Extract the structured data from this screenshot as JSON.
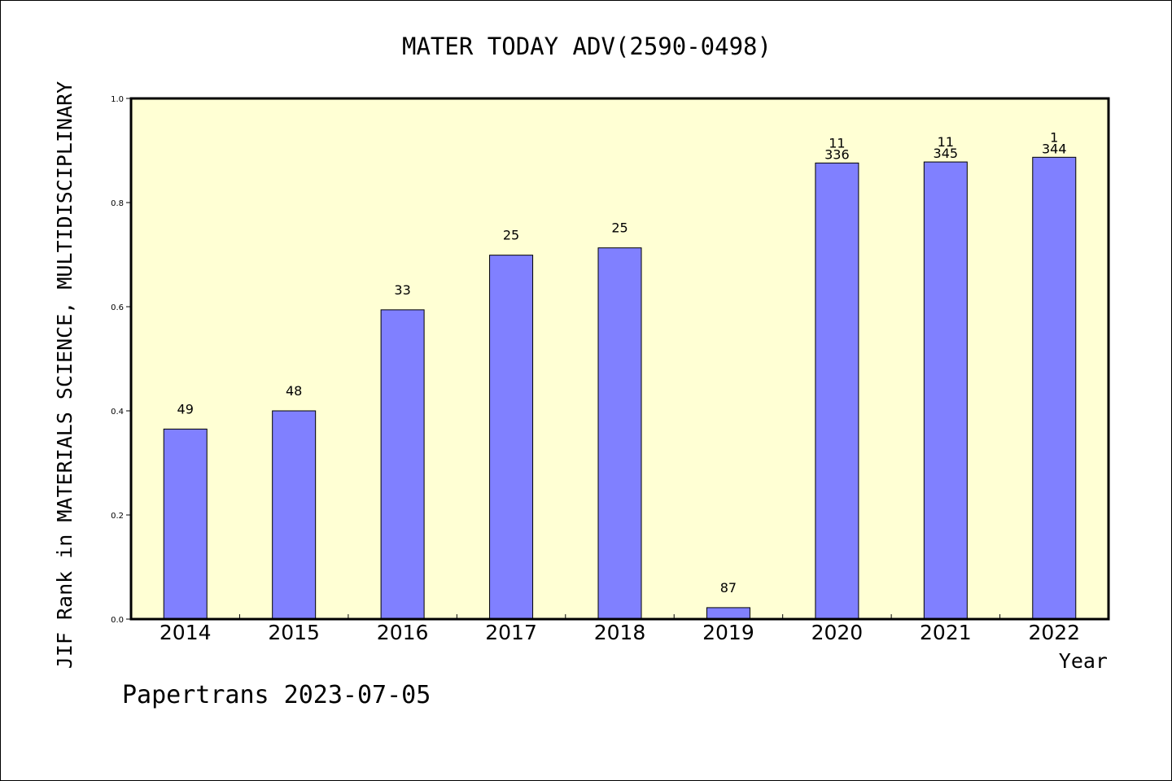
{
  "footer": "Papertrans 2023-07-05",
  "colors": {
    "plot_background": "#ffffd4",
    "bar_fill": "#8080ff",
    "bar_stroke": "#000000"
  },
  "chart_data": {
    "type": "bar",
    "title": "MATER TODAY ADV(2590-0498)",
    "xlabel": "Year",
    "ylabel": "JIF Rank in MATERIALS SCIENCE, MULTIDISCIPLINARY",
    "ylim": [
      0,
      1.0
    ],
    "yticks": [
      "0.0",
      "0.2",
      "0.4",
      "0.6",
      "0.8",
      "1.0"
    ],
    "grid": false,
    "categories": [
      "2014",
      "2015",
      "2016",
      "2017",
      "2018",
      "2019",
      "2020",
      "2021",
      "2022"
    ],
    "values": [
      0.365,
      0.4,
      0.594,
      0.699,
      0.713,
      0.022,
      0.876,
      0.878,
      0.887
    ],
    "labels": [
      [
        "49"
      ],
      [
        "48"
      ],
      [
        "33"
      ],
      [
        "25"
      ],
      [
        "25"
      ],
      [
        "87"
      ],
      [
        "11",
        "336"
      ],
      [
        "11",
        "345"
      ],
      [
        "1",
        "344"
      ]
    ]
  }
}
